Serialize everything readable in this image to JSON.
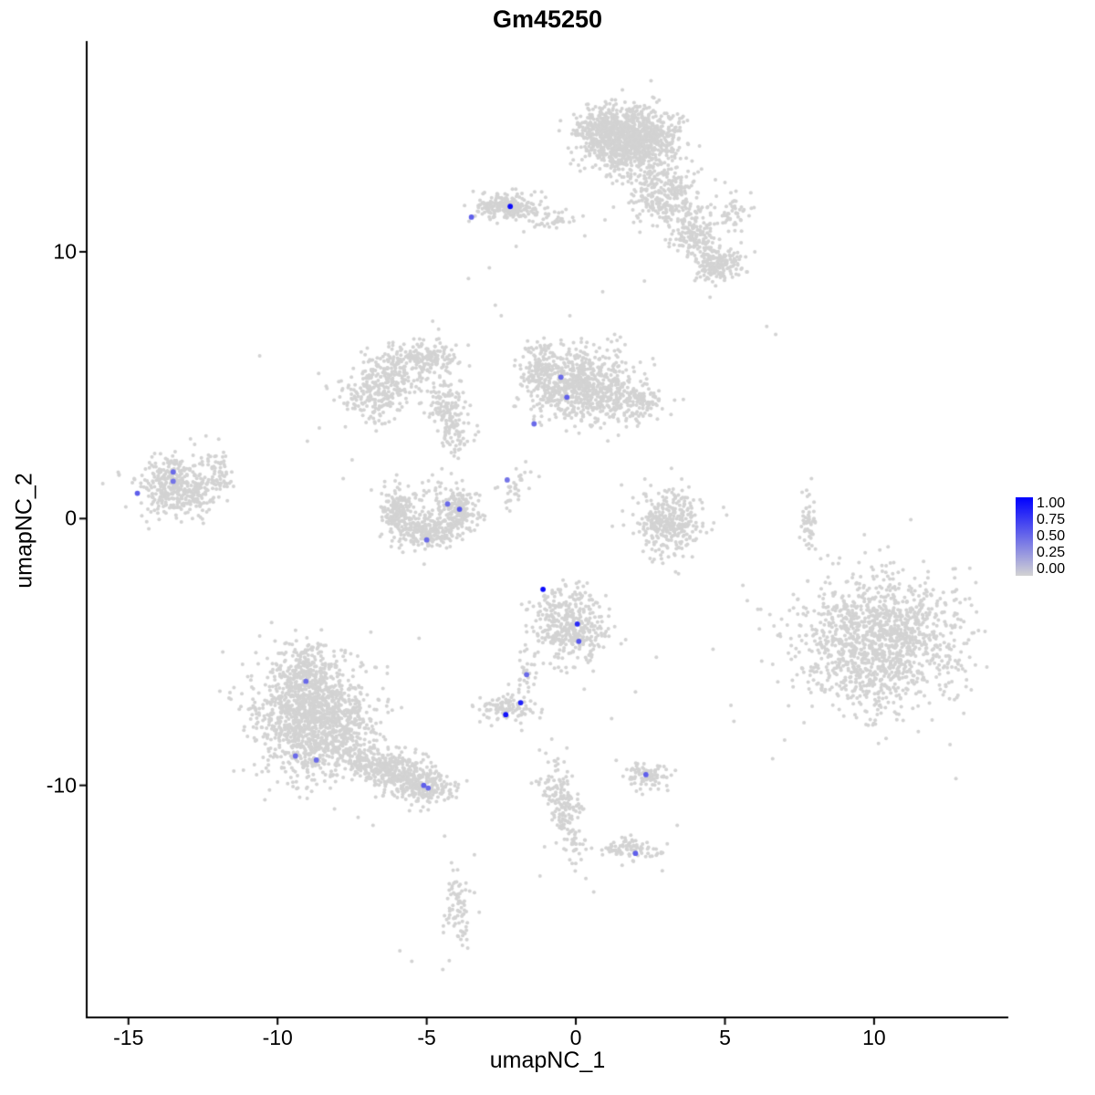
{
  "chart_data": {
    "type": "scatter",
    "title": "Gm45250",
    "xlabel": "umapNC_1",
    "ylabel": "umapNC_2",
    "xlim": [
      -16.4,
      14.5
    ],
    "ylim": [
      -18.7,
      17.9
    ],
    "x_ticks": [
      -15,
      -10,
      -5,
      0,
      5,
      10
    ],
    "y_ticks": [
      10,
      0,
      -10
    ],
    "grid": false,
    "legend": {
      "position": "right",
      "tick_labels": [
        "1.00",
        "0.75",
        "0.50",
        "0.25",
        "0.00"
      ],
      "low_color": "#D3D3D3",
      "high_color": "#0000FF"
    },
    "background_point_color": "#D3D3D3",
    "background_clusters": [
      {
        "n": 1000,
        "x": 1.9,
        "y": 14.2,
        "sx": 0.75,
        "sy": 0.6,
        "rot": 0
      },
      {
        "n": 200,
        "x": 0.8,
        "y": 14.6,
        "sx": 0.4,
        "sy": 0.4,
        "rot": 0
      },
      {
        "n": 280,
        "x": 3.0,
        "y": 12.2,
        "sx": 0.6,
        "sy": 0.6,
        "rot": 0
      },
      {
        "n": 160,
        "x": 4.0,
        "y": 10.7,
        "sx": 0.45,
        "sy": 0.45,
        "rot": 0
      },
      {
        "n": 170,
        "x": 4.7,
        "y": 9.5,
        "sx": 0.45,
        "sy": 0.3,
        "rot": 0
      },
      {
        "n": 50,
        "x": 5.3,
        "y": 11.4,
        "sx": 0.3,
        "sy": 0.45,
        "rot": 0
      },
      {
        "n": 220,
        "x": -2.4,
        "y": 11.7,
        "sx": 0.55,
        "sy": 0.25,
        "rot": 0
      },
      {
        "n": 45,
        "x": -0.8,
        "y": 11.2,
        "sx": 0.5,
        "sy": 0.2,
        "rot": 0
      },
      {
        "n": 700,
        "x": 0.3,
        "y": 4.9,
        "sx": 0.85,
        "sy": 0.7,
        "rot": 0
      },
      {
        "n": 150,
        "x": -1.2,
        "y": 5.7,
        "sx": 0.35,
        "sy": 0.45,
        "rot": 0
      },
      {
        "n": 110,
        "x": 2.2,
        "y": 4.4,
        "sx": 0.4,
        "sy": 0.3,
        "rot": 0
      },
      {
        "n": 280,
        "x": -6.6,
        "y": 4.9,
        "sx": 0.65,
        "sy": 0.6,
        "rot": 0
      },
      {
        "n": 140,
        "x": -5.0,
        "y": 6.1,
        "sx": 0.55,
        "sy": 0.3,
        "rot": 0
      },
      {
        "n": 180,
        "x": -4.2,
        "y": 3.8,
        "sx": 0.3,
        "sy": 0.75,
        "rot": 0.15
      },
      {
        "n": 70,
        "x": -5.8,
        "y": 5.6,
        "sx": 0.45,
        "sy": 0.35,
        "rot": 0
      },
      {
        "n": 160,
        "x": -6.0,
        "y": 0.3,
        "sx": 0.3,
        "sy": 0.45,
        "rot": 0
      },
      {
        "n": 240,
        "x": -4.9,
        "y": -0.5,
        "sx": 0.55,
        "sy": 0.3,
        "rot": 0
      },
      {
        "n": 150,
        "x": -3.9,
        "y": 0.4,
        "sx": 0.28,
        "sy": 0.4,
        "rot": 0
      },
      {
        "n": 70,
        "x": -4.9,
        "y": 0.5,
        "sx": 0.7,
        "sy": 0.5,
        "rot": 0
      },
      {
        "n": 35,
        "x": -1.9,
        "y": 1.2,
        "sx": 0.25,
        "sy": 0.5,
        "rot": -0.4
      },
      {
        "n": 420,
        "x": -13.3,
        "y": 1.2,
        "sx": 0.7,
        "sy": 0.55,
        "rot": 0
      },
      {
        "n": 35,
        "x": -11.9,
        "y": 1.9,
        "sx": 0.15,
        "sy": 0.4,
        "rot": 0
      },
      {
        "n": 320,
        "x": 3.1,
        "y": -0.1,
        "sx": 0.55,
        "sy": 0.65,
        "rot": 0
      },
      {
        "n": 50,
        "x": 7.8,
        "y": -0.2,
        "sx": 0.12,
        "sy": 0.5,
        "rot": 0
      },
      {
        "n": 1350,
        "x": 10.2,
        "y": -4.6,
        "sx": 1.35,
        "sy": 1.25,
        "rot": 0
      },
      {
        "n": 400,
        "x": -0.2,
        "y": -4.0,
        "sx": 0.6,
        "sy": 0.7,
        "rot": 0
      },
      {
        "n": 30,
        "x": -1.7,
        "y": -5.9,
        "sx": 0.2,
        "sy": 0.4,
        "rot": 0
      },
      {
        "n": 110,
        "x": -2.3,
        "y": -7.1,
        "sx": 0.45,
        "sy": 0.25,
        "rot": 0
      },
      {
        "n": 1350,
        "x": -8.8,
        "y": -7.5,
        "sx": 0.95,
        "sy": 1.1,
        "rot": 0
      },
      {
        "n": 150,
        "x": -9.1,
        "y": -5.6,
        "sx": 0.4,
        "sy": 0.5,
        "rot": 0
      },
      {
        "n": 450,
        "x": -6.3,
        "y": -9.4,
        "sx": 0.9,
        "sy": 0.4,
        "rot": -0.35
      },
      {
        "n": 140,
        "x": -5.0,
        "y": -10.1,
        "sx": 0.45,
        "sy": 0.3,
        "rot": 0
      },
      {
        "n": 90,
        "x": 2.4,
        "y": -9.6,
        "sx": 0.35,
        "sy": 0.25,
        "rot": 0
      },
      {
        "n": 150,
        "x": -0.5,
        "y": -10.6,
        "sx": 0.3,
        "sy": 0.8,
        "rot": 0.25
      },
      {
        "n": 40,
        "x": 0.0,
        "y": -12.2,
        "sx": 0.2,
        "sy": 0.4,
        "rot": 0
      },
      {
        "n": 85,
        "x": 1.8,
        "y": -12.4,
        "sx": 0.5,
        "sy": 0.22,
        "rot": 0
      },
      {
        "n": 80,
        "x": -4.0,
        "y": -14.6,
        "sx": 0.25,
        "sy": 0.7,
        "rot": 0
      }
    ],
    "background_singles": [
      [
        -10.6,
        6.1
      ],
      [
        6.4,
        7.2
      ],
      [
        6.7,
        6.9
      ],
      [
        5.2,
        -7.0
      ],
      [
        5.3,
        -7.6
      ],
      [
        2.7,
        -5.2
      ],
      [
        0.9,
        8.5
      ],
      [
        -2.7,
        8.0
      ],
      [
        -2.5,
        7.6
      ],
      [
        -4.8,
        7.4
      ],
      [
        -4.6,
        7.1
      ],
      [
        -5.9,
        -16.2
      ],
      [
        -5.5,
        -16.6
      ],
      [
        -2.9,
        9.4
      ],
      [
        -2.0,
        10.2
      ],
      [
        0.3,
        10.6
      ],
      [
        2.3,
        8.9
      ],
      [
        -7.5,
        2.2
      ],
      [
        -7.8,
        1.5
      ],
      [
        -12.4,
        3.1
      ],
      [
        7.9,
        1.5
      ],
      [
        2.0,
        -6.5
      ],
      [
        1.2,
        -7.5
      ],
      [
        -0.3,
        -8.6
      ],
      [
        -0.6,
        -9.0
      ],
      [
        3.4,
        -11.5
      ],
      [
        2.9,
        -13.2
      ],
      [
        -3.4,
        -12.6
      ],
      [
        -1.2,
        -13.4
      ],
      [
        0.6,
        -14.0
      ],
      [
        -6.8,
        -11.5
      ],
      [
        -7.3,
        -11.2
      ],
      [
        -4.4,
        -11.9
      ],
      [
        -3.6,
        9.0
      ],
      [
        4.5,
        8.3
      ],
      [
        5.0,
        12.6
      ],
      [
        6.0,
        10.0
      ],
      [
        1.3,
        6.9
      ],
      [
        -0.2,
        7.6
      ],
      [
        -8.6,
        3.4
      ],
      [
        -9.0,
        2.9
      ],
      [
        -10.2,
        -3.9
      ],
      [
        -10.6,
        -4.4
      ],
      [
        5.6,
        -2.5
      ],
      [
        6.2,
        -3.4
      ],
      [
        4.6,
        -4.9
      ],
      [
        13.2,
        -3.0
      ],
      [
        13.5,
        -4.2
      ],
      [
        7.0,
        -8.3
      ],
      [
        6.6,
        -9.0
      ]
    ],
    "expressing_points": [
      {
        "x": -3.5,
        "y": 11.3,
        "value": 0.55
      },
      {
        "x": -2.2,
        "y": 11.7,
        "value": 0.95
      },
      {
        "x": -0.5,
        "y": 5.3,
        "value": 0.5
      },
      {
        "x": -0.3,
        "y": 4.55,
        "value": 0.55
      },
      {
        "x": -1.4,
        "y": 3.55,
        "value": 0.5
      },
      {
        "x": -2.3,
        "y": 1.45,
        "value": 0.45
      },
      {
        "x": -4.3,
        "y": 0.55,
        "value": 0.5
      },
      {
        "x": -3.9,
        "y": 0.35,
        "value": 0.6
      },
      {
        "x": -5.0,
        "y": -0.8,
        "value": 0.5
      },
      {
        "x": -14.7,
        "y": 0.95,
        "value": 0.55
      },
      {
        "x": -13.5,
        "y": 1.75,
        "value": 0.5
      },
      {
        "x": -13.5,
        "y": 1.4,
        "value": 0.45
      },
      {
        "x": -1.1,
        "y": -2.65,
        "value": 0.95
      },
      {
        "x": 0.05,
        "y": -3.95,
        "value": 0.8
      },
      {
        "x": 0.1,
        "y": -4.6,
        "value": 0.6
      },
      {
        "x": -1.65,
        "y": -5.85,
        "value": 0.5
      },
      {
        "x": -1.85,
        "y": -6.9,
        "value": 0.85
      },
      {
        "x": -2.35,
        "y": -7.35,
        "value": 0.9
      },
      {
        "x": -9.05,
        "y": -6.1,
        "value": 0.5
      },
      {
        "x": -9.4,
        "y": -8.9,
        "value": 0.5
      },
      {
        "x": -8.7,
        "y": -9.05,
        "value": 0.5
      },
      {
        "x": -5.1,
        "y": -10.0,
        "value": 0.55
      },
      {
        "x": -4.95,
        "y": -10.1,
        "value": 0.5
      },
      {
        "x": 2.35,
        "y": -9.6,
        "value": 0.55
      },
      {
        "x": 2.0,
        "y": -12.55,
        "value": 0.55
      }
    ]
  }
}
